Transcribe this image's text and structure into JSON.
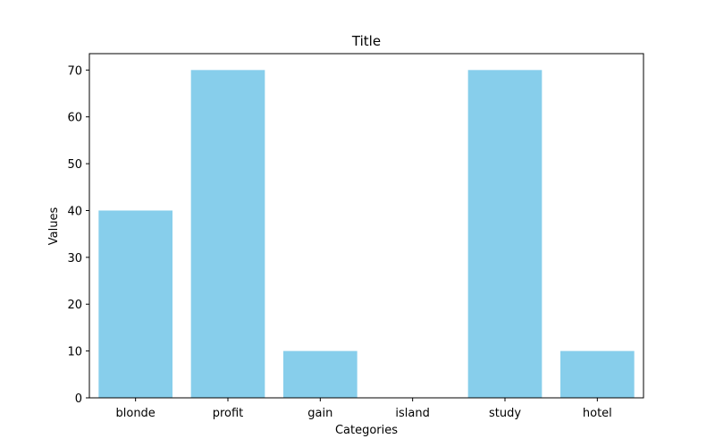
{
  "chart_data": {
    "type": "bar",
    "title": "Title",
    "xlabel": "Categories",
    "ylabel": "Values",
    "categories": [
      "blonde",
      "profit",
      "gain",
      "island",
      "study",
      "hotel"
    ],
    "values": [
      40,
      70,
      10,
      0,
      70,
      10
    ],
    "ylim": [
      0,
      73.5
    ],
    "yticks": [
      0,
      10,
      20,
      30,
      40,
      50,
      60,
      70
    ],
    "grid": false,
    "legend": "none",
    "colors": {
      "bar": "#87CEEB",
      "axis": "#000000",
      "background": "#ffffff"
    }
  }
}
